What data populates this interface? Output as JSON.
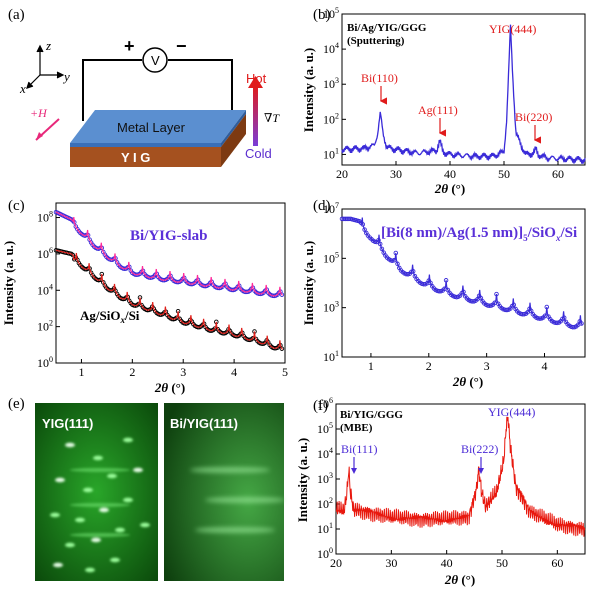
{
  "panels": {
    "a": {
      "letter": "(a)",
      "axes": {
        "z": "z",
        "y": "y",
        "x": "x"
      },
      "plus": "+",
      "minus": "−",
      "voltmeter": "V",
      "metal_layer": "Metal  Layer",
      "yig": "Y I G",
      "field": "+H",
      "hot": "Hot",
      "cold": "Cold",
      "grad": "∇T"
    },
    "b": {
      "letter": "(b)",
      "sample": "Bi/Ag/YIG/GGG",
      "method": "(Sputtering)",
      "peaks": [
        "Bi(110)",
        "Ag(111)",
        "YIG(444)",
        "Bi(220)"
      ]
    },
    "c": {
      "letter": "(c)",
      "label1": "Bi/YIG-slab",
      "label2": "Ag/SiOx/Si"
    },
    "d": {
      "letter": "(d)",
      "label": "[Bi(8 nm)/Ag(1.5 nm)]5/SiOx/Si"
    },
    "e": {
      "letter": "(e)",
      "left": "YIG(111)",
      "right": "Bi/YIG(111)"
    },
    "f": {
      "letter": "(f)",
      "sample": "Bi/YIG/GGG",
      "method": "(MBE)",
      "peaks": [
        "Bi(111)",
        "Bi(222)",
        "YIG(444)"
      ]
    }
  },
  "colors": {
    "red": "#e01b1b",
    "blue": "#4b2bd6",
    "xrr_blue": "#3a2bd8",
    "xrr_red": "#e0201b",
    "green": "#1f8a1f"
  },
  "chart_data": [
    {
      "id": "b",
      "type": "line",
      "xlabel": "2θ (°)",
      "ylabel": "Intensity (a. u.)",
      "xlim": [
        20,
        65
      ],
      "ylim": [
        5,
        100000
      ],
      "yscale": "log",
      "xticks": [
        20,
        30,
        40,
        50,
        60
      ],
      "yticks": [
        "10^1",
        "10^2",
        "10^3",
        "10^4",
        "10^5"
      ],
      "series": [
        {
          "color": "#3a2bd8",
          "x": [
            20,
            24,
            26,
            26.6,
            27.1,
            27.6,
            28.3,
            30,
            34,
            37.5,
            38.1,
            38.7,
            40,
            44,
            48,
            50,
            50.5,
            50.9,
            51.2,
            51.6,
            52.2,
            54,
            55.5,
            55.9,
            56.3,
            58,
            62,
            65
          ],
          "y": [
            14,
            15,
            18,
            40,
            150,
            40,
            16,
            14,
            11,
            13,
            25,
            12,
            10,
            9,
            9,
            12,
            100,
            3000,
            45000,
            2000,
            40,
            10,
            11,
            15,
            10,
            8,
            7.5,
            7
          ]
        }
      ]
    },
    {
      "id": "c",
      "type": "line",
      "xlabel": "2θ (°)",
      "ylabel": "Intensity (a. u.)",
      "xlim": [
        0.5,
        5
      ],
      "yscale": "log",
      "xticks": [
        1,
        2,
        3,
        4,
        5
      ],
      "yticks": [
        "10^0",
        "10^2",
        "10^4",
        "10^6",
        "10^8"
      ],
      "series": [
        {
          "name": "Bi/YIG-slab",
          "color": "#3a2bd8",
          "decades": [
            8.3,
            7.9,
            7.4,
            6.7,
            6.1,
            5.6,
            5.2,
            4.9,
            4.7,
            4.5,
            4.3,
            4.1,
            3.9
          ],
          "x": [
            0.5,
            0.8,
            1.0,
            1.25,
            1.5,
            1.75,
            2.0,
            2.5,
            3.0,
            3.5,
            4.0,
            4.5,
            5.0
          ]
        },
        {
          "name": "Ag/SiOx/Si",
          "color": "#000000",
          "decades": [
            6.2,
            6.0,
            5.6,
            5.0,
            4.4,
            3.9,
            3.5,
            3.0,
            2.5,
            2.1,
            1.8,
            1.4,
            0.9
          ],
          "x": [
            0.5,
            0.8,
            1.0,
            1.25,
            1.5,
            1.75,
            2.0,
            2.5,
            3.0,
            3.5,
            4.0,
            4.5,
            5.0
          ]
        }
      ]
    },
    {
      "id": "d",
      "type": "scatter",
      "xlabel": "2θ (°)",
      "ylabel": "Intensity (a. u.)",
      "xlim": [
        0.5,
        4.7
      ],
      "ylim": [
        10,
        10000000
      ],
      "yscale": "log",
      "xticks": [
        1,
        2,
        3,
        4
      ],
      "yticks": [
        "10^1",
        "10^3",
        "10^5",
        "10^7"
      ],
      "series": [
        {
          "color": "#3a2bd8",
          "x": [
            0.5,
            0.65,
            0.8,
            1.0,
            1.25,
            1.5,
            2.0,
            2.5,
            3.0,
            3.5,
            4.0,
            4.5,
            4.7
          ],
          "decades": [
            6.6,
            6.6,
            6.5,
            6.1,
            5.4,
            4.8,
            4.1,
            3.7,
            3.4,
            3.1,
            2.8,
            2.5,
            2.4
          ]
        }
      ]
    },
    {
      "id": "f",
      "type": "line",
      "xlabel": "2θ (°)",
      "ylabel": "Intensity (a. u.)",
      "xlim": [
        20,
        65
      ],
      "ylim": [
        1,
        1000000
      ],
      "yscale": "log",
      "xticks": [
        20,
        30,
        40,
        50,
        60
      ],
      "yticks": [
        "10^0",
        "10^1",
        "10^2",
        "10^3",
        "10^4",
        "10^5",
        "10^6"
      ],
      "series": [
        {
          "color": "#e8180e",
          "x": [
            20,
            21.5,
            22.0,
            22.3,
            22.6,
            23.2,
            26,
            30,
            35,
            40,
            44,
            45.3,
            45.8,
            46.3,
            47,
            49,
            50.3,
            50.8,
            51.1,
            51.5,
            52.5,
            55,
            60,
            65
          ],
          "y": [
            60,
            60,
            300,
            2500,
            300,
            60,
            45,
            30,
            25,
            25,
            30,
            300,
            2500,
            300,
            80,
            300,
            5000,
            150000,
            300000,
            20000,
            500,
            50,
            15,
            10
          ]
        }
      ]
    }
  ]
}
